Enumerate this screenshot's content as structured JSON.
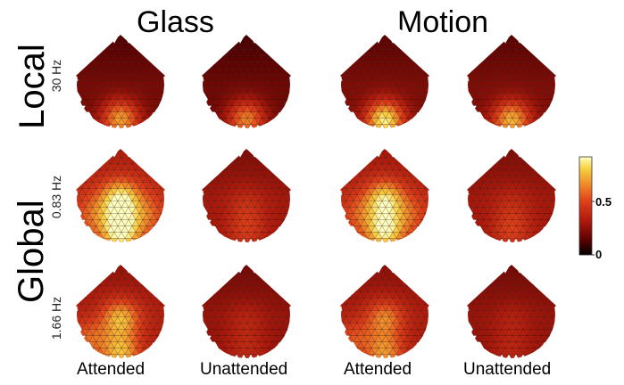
{
  "headers": {
    "columns": [
      "Glass",
      "Motion"
    ],
    "rows": [
      "Local",
      "Global"
    ]
  },
  "frequencies": [
    "30 Hz",
    "0.83 Hz",
    "1.66 Hz"
  ],
  "conditions": [
    "Attended",
    "Unattended",
    "Attended",
    "Unattended"
  ],
  "colorbar": {
    "ticks": [
      "0.5",
      "0"
    ],
    "min": 0,
    "max": 1,
    "colormap": [
      "#000000",
      "#5a0000",
      "#b01a0c",
      "#e0401a",
      "#f08a2a",
      "#f8d040",
      "#ffffc0"
    ]
  },
  "maps": [
    {
      "row": 0,
      "col": 0,
      "freq": "30 Hz",
      "condition": "Attended",
      "base": 0.22,
      "blobs": [
        [
          0.0,
          0.78,
          0.55
        ]
      ]
    },
    {
      "row": 0,
      "col": 1,
      "freq": "30 Hz",
      "condition": "Unattended",
      "base": 0.2,
      "blobs": [
        [
          0.0,
          0.78,
          0.5
        ]
      ]
    },
    {
      "row": 0,
      "col": 2,
      "freq": "30 Hz",
      "condition": "Attended",
      "base": 0.24,
      "blobs": [
        [
          0.0,
          0.8,
          0.72
        ]
      ]
    },
    {
      "row": 0,
      "col": 3,
      "freq": "30 Hz",
      "condition": "Unattended",
      "base": 0.24,
      "blobs": [
        [
          0.0,
          0.8,
          0.58
        ]
      ]
    },
    {
      "row": 1,
      "col": 0,
      "freq": "0.83 Hz",
      "condition": "Attended",
      "base": 0.45,
      "blobs": [
        [
          0.0,
          0.02,
          0.55
        ],
        [
          0.0,
          0.72,
          0.6
        ],
        [
          -0.55,
          0.35,
          0.2
        ],
        [
          0.55,
          0.35,
          0.2
        ]
      ]
    },
    {
      "row": 1,
      "col": 1,
      "freq": "0.83 Hz",
      "condition": "Unattended",
      "base": 0.33,
      "blobs": [
        [
          0.0,
          0.72,
          0.18
        ],
        [
          0.0,
          0.15,
          0.12
        ]
      ]
    },
    {
      "row": 1,
      "col": 2,
      "freq": "0.83 Hz",
      "condition": "Attended",
      "base": 0.42,
      "blobs": [
        [
          0.0,
          0.02,
          0.5
        ],
        [
          0.0,
          0.72,
          0.55
        ],
        [
          -0.55,
          0.35,
          0.18
        ],
        [
          0.55,
          0.35,
          0.18
        ]
      ]
    },
    {
      "row": 1,
      "col": 3,
      "freq": "0.83 Hz",
      "condition": "Unattended",
      "base": 0.33,
      "blobs": [
        [
          0.0,
          0.72,
          0.2
        ],
        [
          0.0,
          0.15,
          0.1
        ]
      ]
    },
    {
      "row": 2,
      "col": 0,
      "freq": "1.66 Hz",
      "condition": "Attended",
      "base": 0.38,
      "blobs": [
        [
          0.0,
          0.1,
          0.45
        ],
        [
          0.0,
          0.85,
          0.45
        ],
        [
          -0.7,
          0.55,
          0.25
        ]
      ]
    },
    {
      "row": 2,
      "col": 1,
      "freq": "1.66 Hz",
      "condition": "Unattended",
      "base": 0.3,
      "blobs": [
        [
          0.0,
          0.15,
          0.1
        ],
        [
          0.0,
          0.8,
          0.12
        ]
      ]
    },
    {
      "row": 2,
      "col": 2,
      "freq": "1.66 Hz",
      "condition": "Attended",
      "base": 0.36,
      "blobs": [
        [
          0.0,
          0.1,
          0.35
        ],
        [
          0.0,
          0.85,
          0.38
        ],
        [
          -0.7,
          0.55,
          0.22
        ]
      ]
    },
    {
      "row": 2,
      "col": 3,
      "freq": "1.66 Hz",
      "condition": "Unattended",
      "base": 0.3,
      "blobs": [
        [
          0.0,
          0.15,
          0.08
        ],
        [
          0.0,
          0.8,
          0.1
        ]
      ]
    }
  ]
}
